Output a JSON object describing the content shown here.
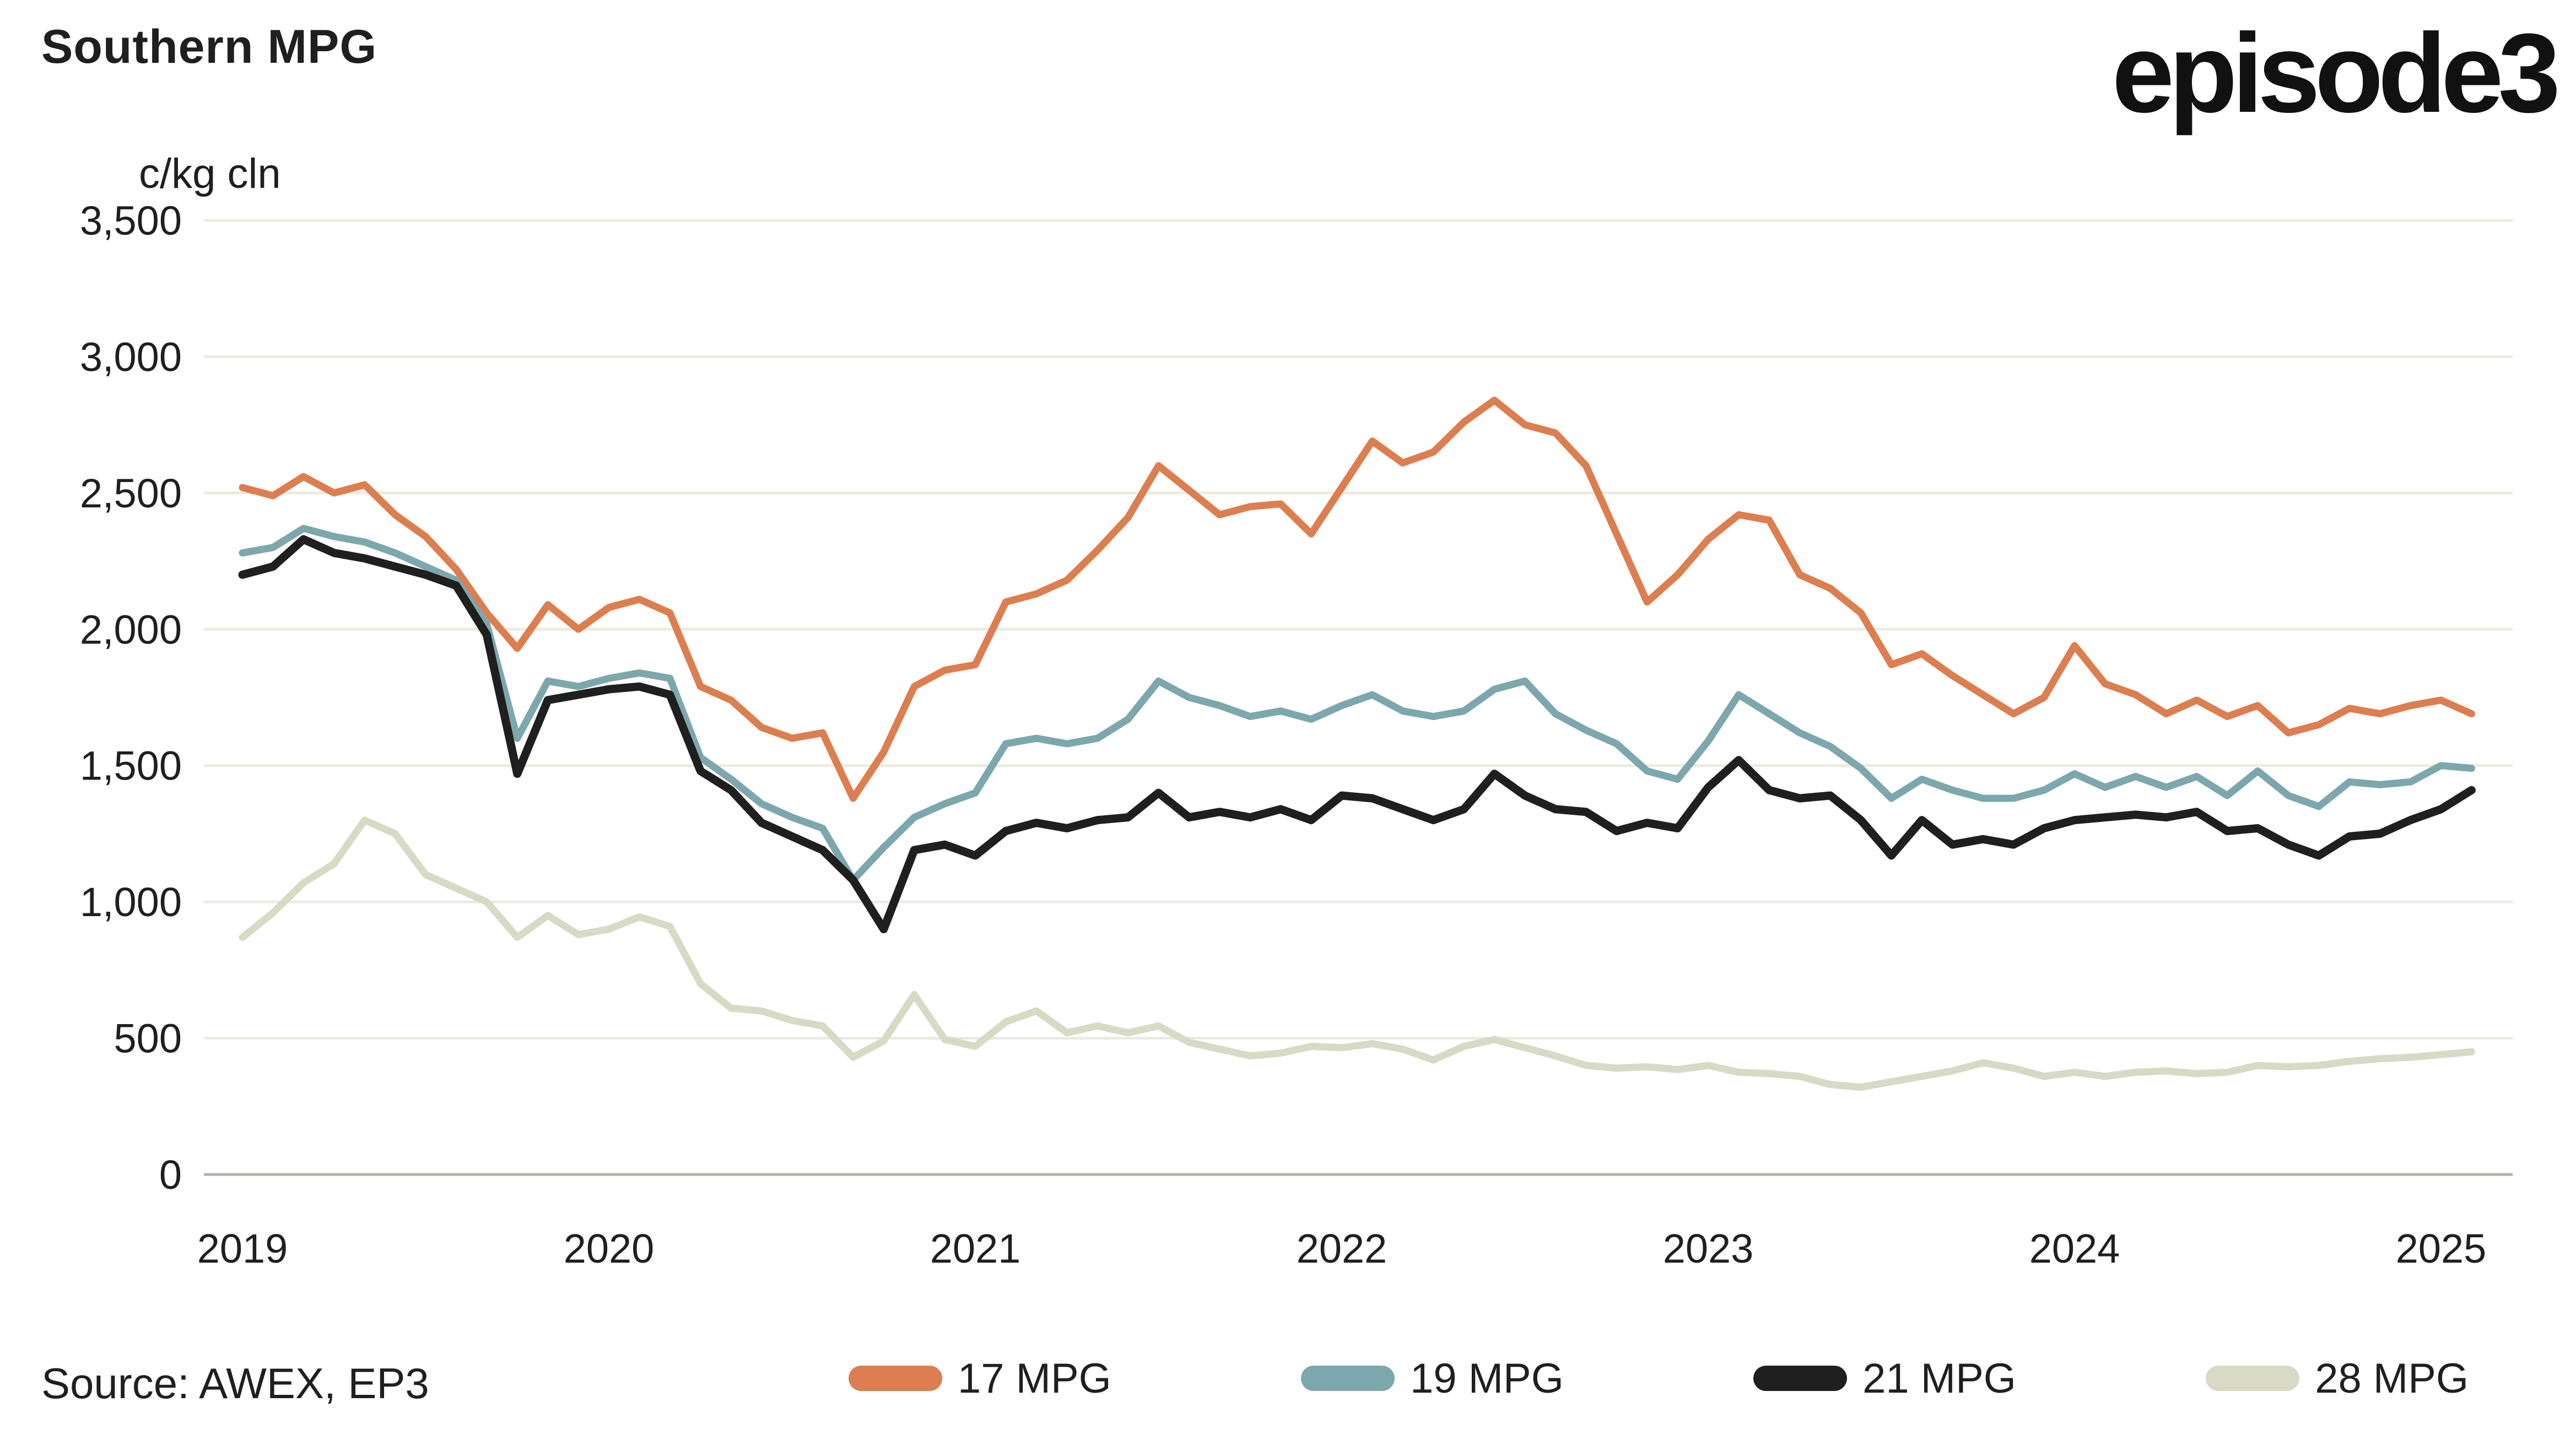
{
  "header": {
    "title": "Southern MPG",
    "unit_label": "c/kg cln",
    "logo_text": "episode3"
  },
  "footer": {
    "source": "Source: AWEX, EP3"
  },
  "colors": {
    "background": "#FFFFFF",
    "text": "#1F1F1F",
    "gridline": "#EDEBE0",
    "axis_line": "#B3B1A7",
    "series_17mpg": "#DC7E4F",
    "series_19mpg": "#7CA7AD",
    "series_21mpg": "#1F1F1F",
    "series_28mpg": "#D8DAC5"
  },
  "chart_data": {
    "type": "line",
    "title": "Southern MPG",
    "xlabel": "",
    "ylabel": "c/kg cln",
    "ylim": [
      0,
      3500
    ],
    "grid": "horizontal",
    "legend_position": "bottom",
    "x_start": "2019-01",
    "x_step": "1 month",
    "x_tick_labels": [
      "2019",
      "2020",
      "2021",
      "2022",
      "2023",
      "2024",
      "2025"
    ],
    "y_ticks": [
      {
        "value": 0,
        "label": "0"
      },
      {
        "value": 500,
        "label": "500"
      },
      {
        "value": 1000,
        "label": "1,000"
      },
      {
        "value": 1500,
        "label": "1,500"
      },
      {
        "value": 2000,
        "label": "2,000"
      },
      {
        "value": 2500,
        "label": "2,500"
      },
      {
        "value": 3000,
        "label": "3,000"
      },
      {
        "value": 3500,
        "label": "3,500"
      }
    ],
    "series": [
      {
        "name": "17 MPG",
        "color": "#DC7E4F",
        "values": [
          2520,
          2490,
          2560,
          2500,
          2530,
          2420,
          2340,
          2220,
          2060,
          1930,
          2090,
          2000,
          2080,
          2110,
          2060,
          1790,
          1740,
          1640,
          1600,
          1620,
          1380,
          1550,
          1790,
          1850,
          1870,
          2100,
          2130,
          2180,
          2290,
          2410,
          2600,
          2510,
          2420,
          2450,
          2460,
          2350,
          2520,
          2690,
          2610,
          2650,
          2760,
          2840,
          2750,
          2720,
          2600,
          2350,
          2100,
          2200,
          2330,
          2420,
          2400,
          2200,
          2150,
          2060,
          1870,
          1910,
          1830,
          1760,
          1690,
          1750,
          1940,
          1800,
          1760,
          1690,
          1740,
          1680,
          1720,
          1620,
          1650,
          1710,
          1690,
          1720,
          1740,
          1690
        ]
      },
      {
        "name": "19 MPG",
        "color": "#7CA7AD",
        "values": [
          2280,
          2300,
          2370,
          2340,
          2320,
          2280,
          2230,
          2180,
          2020,
          1600,
          1810,
          1790,
          1820,
          1840,
          1820,
          1530,
          1450,
          1360,
          1310,
          1270,
          1080,
          1200,
          1310,
          1360,
          1400,
          1580,
          1600,
          1580,
          1600,
          1670,
          1810,
          1750,
          1720,
          1680,
          1700,
          1670,
          1720,
          1760,
          1700,
          1680,
          1700,
          1780,
          1810,
          1690,
          1630,
          1580,
          1480,
          1450,
          1590,
          1760,
          1690,
          1620,
          1570,
          1490,
          1380,
          1450,
          1410,
          1380,
          1380,
          1410,
          1470,
          1420,
          1460,
          1420,
          1460,
          1390,
          1480,
          1390,
          1350,
          1440,
          1430,
          1440,
          1500,
          1490
        ]
      },
      {
        "name": "21 MPG",
        "color": "#1F1F1F",
        "values": [
          2200,
          2230,
          2330,
          2280,
          2260,
          2230,
          2200,
          2160,
          1980,
          1470,
          1740,
          1760,
          1780,
          1790,
          1760,
          1480,
          1410,
          1290,
          1240,
          1190,
          1080,
          900,
          1190,
          1210,
          1170,
          1260,
          1290,
          1270,
          1300,
          1310,
          1400,
          1310,
          1330,
          1310,
          1340,
          1300,
          1390,
          1380,
          1340,
          1300,
          1340,
          1470,
          1390,
          1340,
          1330,
          1260,
          1290,
          1270,
          1420,
          1520,
          1410,
          1380,
          1390,
          1300,
          1170,
          1300,
          1210,
          1230,
          1210,
          1270,
          1300,
          1310,
          1320,
          1310,
          1330,
          1260,
          1270,
          1210,
          1170,
          1240,
          1250,
          1300,
          1340,
          1410
        ]
      },
      {
        "name": "28 MPG",
        "color": "#D8DAC5",
        "values": [
          870,
          960,
          1070,
          1140,
          1300,
          1250,
          1100,
          1050,
          1000,
          870,
          950,
          880,
          900,
          945,
          910,
          700,
          610,
          600,
          565,
          545,
          430,
          490,
          660,
          495,
          470,
          560,
          600,
          520,
          545,
          520,
          545,
          485,
          460,
          435,
          445,
          470,
          465,
          480,
          460,
          420,
          470,
          495,
          465,
          435,
          400,
          390,
          395,
          385,
          400,
          375,
          370,
          360,
          330,
          320,
          340,
          360,
          380,
          410,
          390,
          360,
          375,
          360,
          375,
          380,
          370,
          375,
          400,
          395,
          400,
          415,
          425,
          430,
          440,
          450
        ]
      }
    ]
  }
}
